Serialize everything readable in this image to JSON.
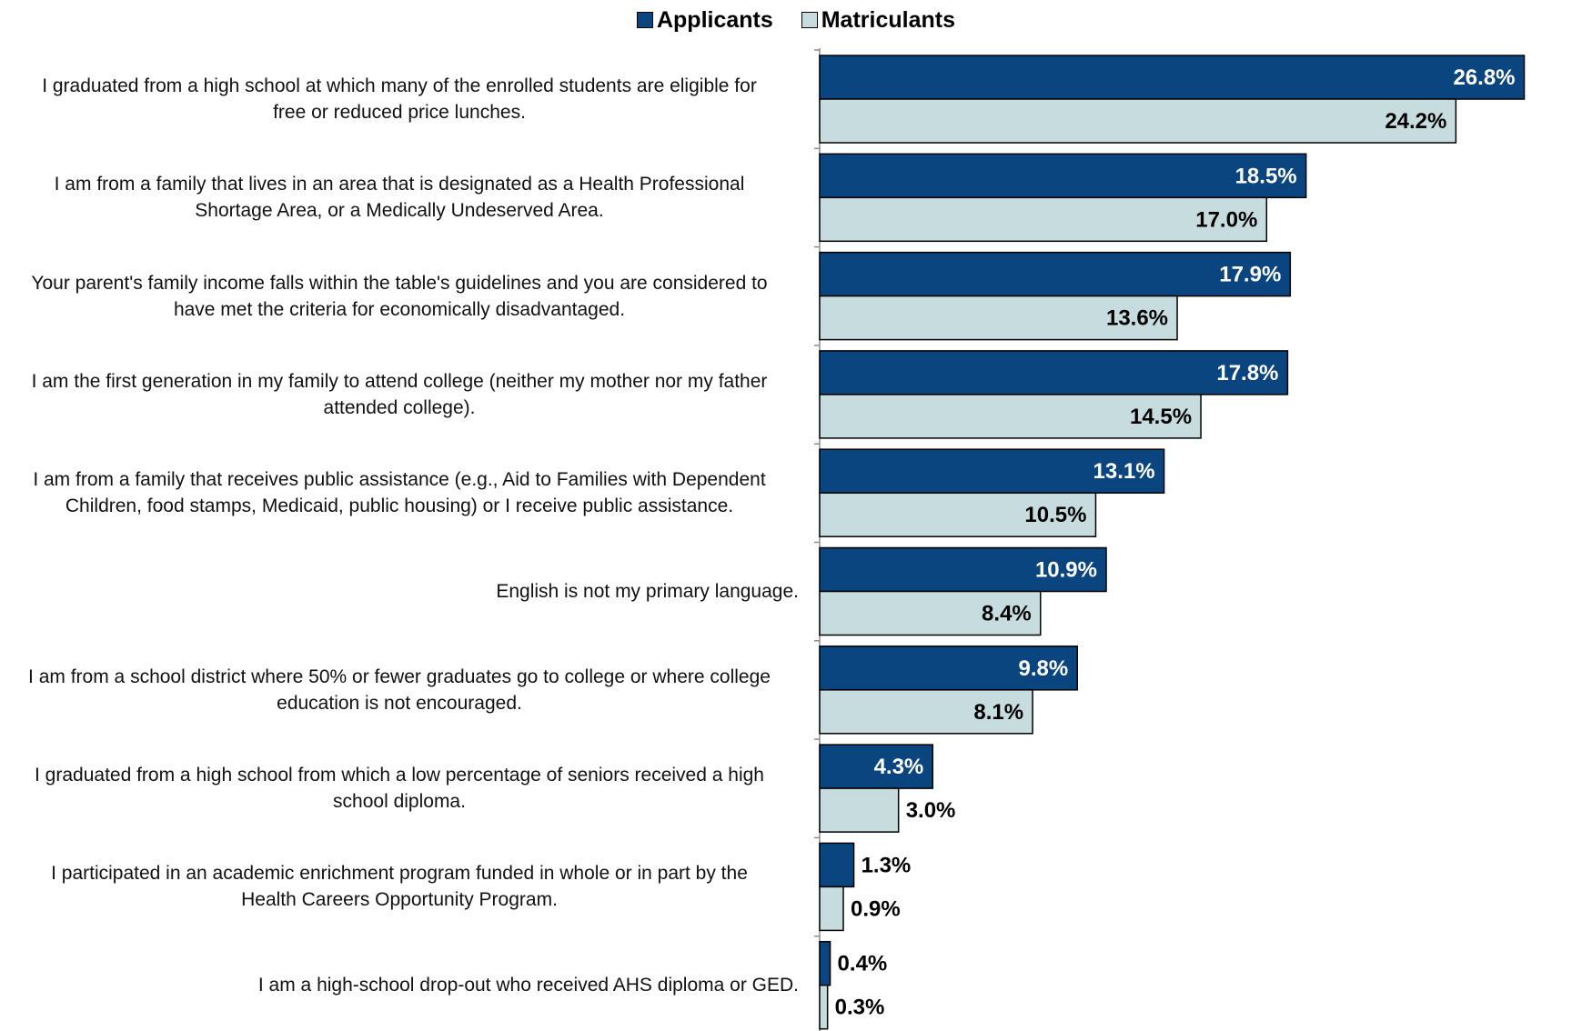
{
  "chart_data": {
    "type": "bar",
    "orientation": "horizontal",
    "categories": [
      "I graduated from a high school at which many of the enrolled students are eligible for free or reduced price lunches.",
      "I am from a family that lives in an area that is designated as a Health Professional Shortage Area, or a Medically Undeserved Area.",
      "Your parent's family income falls within the table's guidelines and you are considered to have met the criteria for economically disadvantaged.",
      "I am the first generation in my family to attend college (neither my mother nor my father attended college).",
      "I am from a family that receives public assistance (e.g., Aid to Families with Dependent Children, food stamps, Medicaid, public housing) or I receive public assistance.",
      "English is not my primary language.",
      "I am from a school district where 50% or fewer graduates go to college or where college education is not encouraged.",
      "I graduated from a high school from which a low percentage of seniors received a high school diploma.",
      "I participated in an academic enrichment program funded in whole or in part by the Health Careers Opportunity Program.",
      "I am a high-school drop-out who received AHS diploma or GED."
    ],
    "category_lines": [
      [
        "I graduated from a high school at which many of the enrolled students are eligible for",
        "free or reduced price lunches."
      ],
      [
        "I am from a family that lives in an area that is designated as a Health Professional",
        "Shortage Area, or a Medically Undeserved Area."
      ],
      [
        "Your parent's family income falls within the table's guidelines and you are considered to",
        "have met the criteria for economically disadvantaged."
      ],
      [
        "I am the first generation in my family to attend college (neither my mother nor my father",
        "attended college)."
      ],
      [
        "I am from a family that receives public assistance (e.g., Aid to Families with Dependent",
        "Children, food stamps, Medicaid, public housing) or I receive public assistance."
      ],
      [
        "English is not my primary language."
      ],
      [
        "I am from a school district where 50% or fewer graduates go to college or where college",
        "education is not encouraged."
      ],
      [
        "I graduated from a high school from which a low percentage of seniors received a high",
        "school diploma."
      ],
      [
        "I participated in an academic enrichment program funded in whole or in part by the",
        "Health Careers Opportunity Program."
      ],
      [
        "I am a high-school drop-out who received AHS diploma or GED."
      ]
    ],
    "series": [
      {
        "name": "Applicants",
        "color": "#0b4580",
        "values": [
          26.8,
          18.5,
          17.9,
          17.8,
          13.1,
          10.9,
          9.8,
          4.3,
          1.3,
          0.4
        ],
        "labels": [
          "26.8%",
          "18.5%",
          "17.9%",
          "17.8%",
          "13.1%",
          "10.9%",
          "9.8%",
          "4.3%",
          "1.3%",
          "0.4%"
        ]
      },
      {
        "name": "Matriculants",
        "color": "#c7dcdf",
        "values": [
          24.2,
          17.0,
          13.6,
          14.5,
          10.5,
          8.4,
          8.1,
          3.0,
          0.9,
          0.3
        ],
        "labels": [
          "24.2%",
          "17.0%",
          "13.6%",
          "14.5%",
          "10.5%",
          "8.4%",
          "8.1%",
          "3.0%",
          "0.9%",
          "0.3%"
        ]
      }
    ],
    "value_unit": "%",
    "legend_position": "top-center",
    "grid": false,
    "xlabel": "",
    "ylabel": ""
  }
}
